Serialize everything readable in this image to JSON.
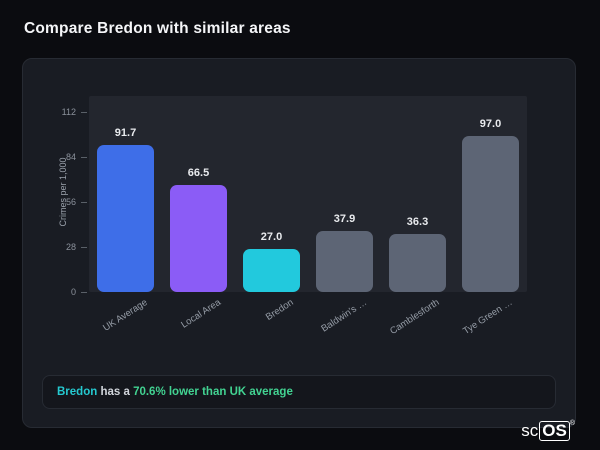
{
  "page": {
    "title": "Compare Bredon with similar areas"
  },
  "chart_data": {
    "type": "bar",
    "categories": [
      "UK Average",
      "Local Area",
      "Bredon",
      "Baldwin's …",
      "Camblesforth",
      "Tye Green …"
    ],
    "values": [
      91.7,
      66.5,
      27.0,
      37.9,
      36.3,
      97.0
    ],
    "value_labels": [
      "91.7",
      "66.5",
      "27.0",
      "37.9",
      "36.3",
      "97.0"
    ],
    "bar_colors": [
      "#3e6ee8",
      "#8b5cf6",
      "#22c9dd",
      "#5d6575",
      "#5d6575",
      "#5d6575"
    ],
    "title": "",
    "xlabel": "",
    "ylabel": "Crimes per 1,000",
    "yticks": [
      0,
      28,
      56,
      84,
      112
    ],
    "ylim": [
      0,
      112
    ],
    "grid": false,
    "legend": false
  },
  "note": {
    "subject": "Bredon",
    "middle": " has a ",
    "highlight": "70.6% lower than UK average"
  },
  "logo": {
    "prefix": "sc",
    "suffix": "OS",
    "registered": "®"
  }
}
